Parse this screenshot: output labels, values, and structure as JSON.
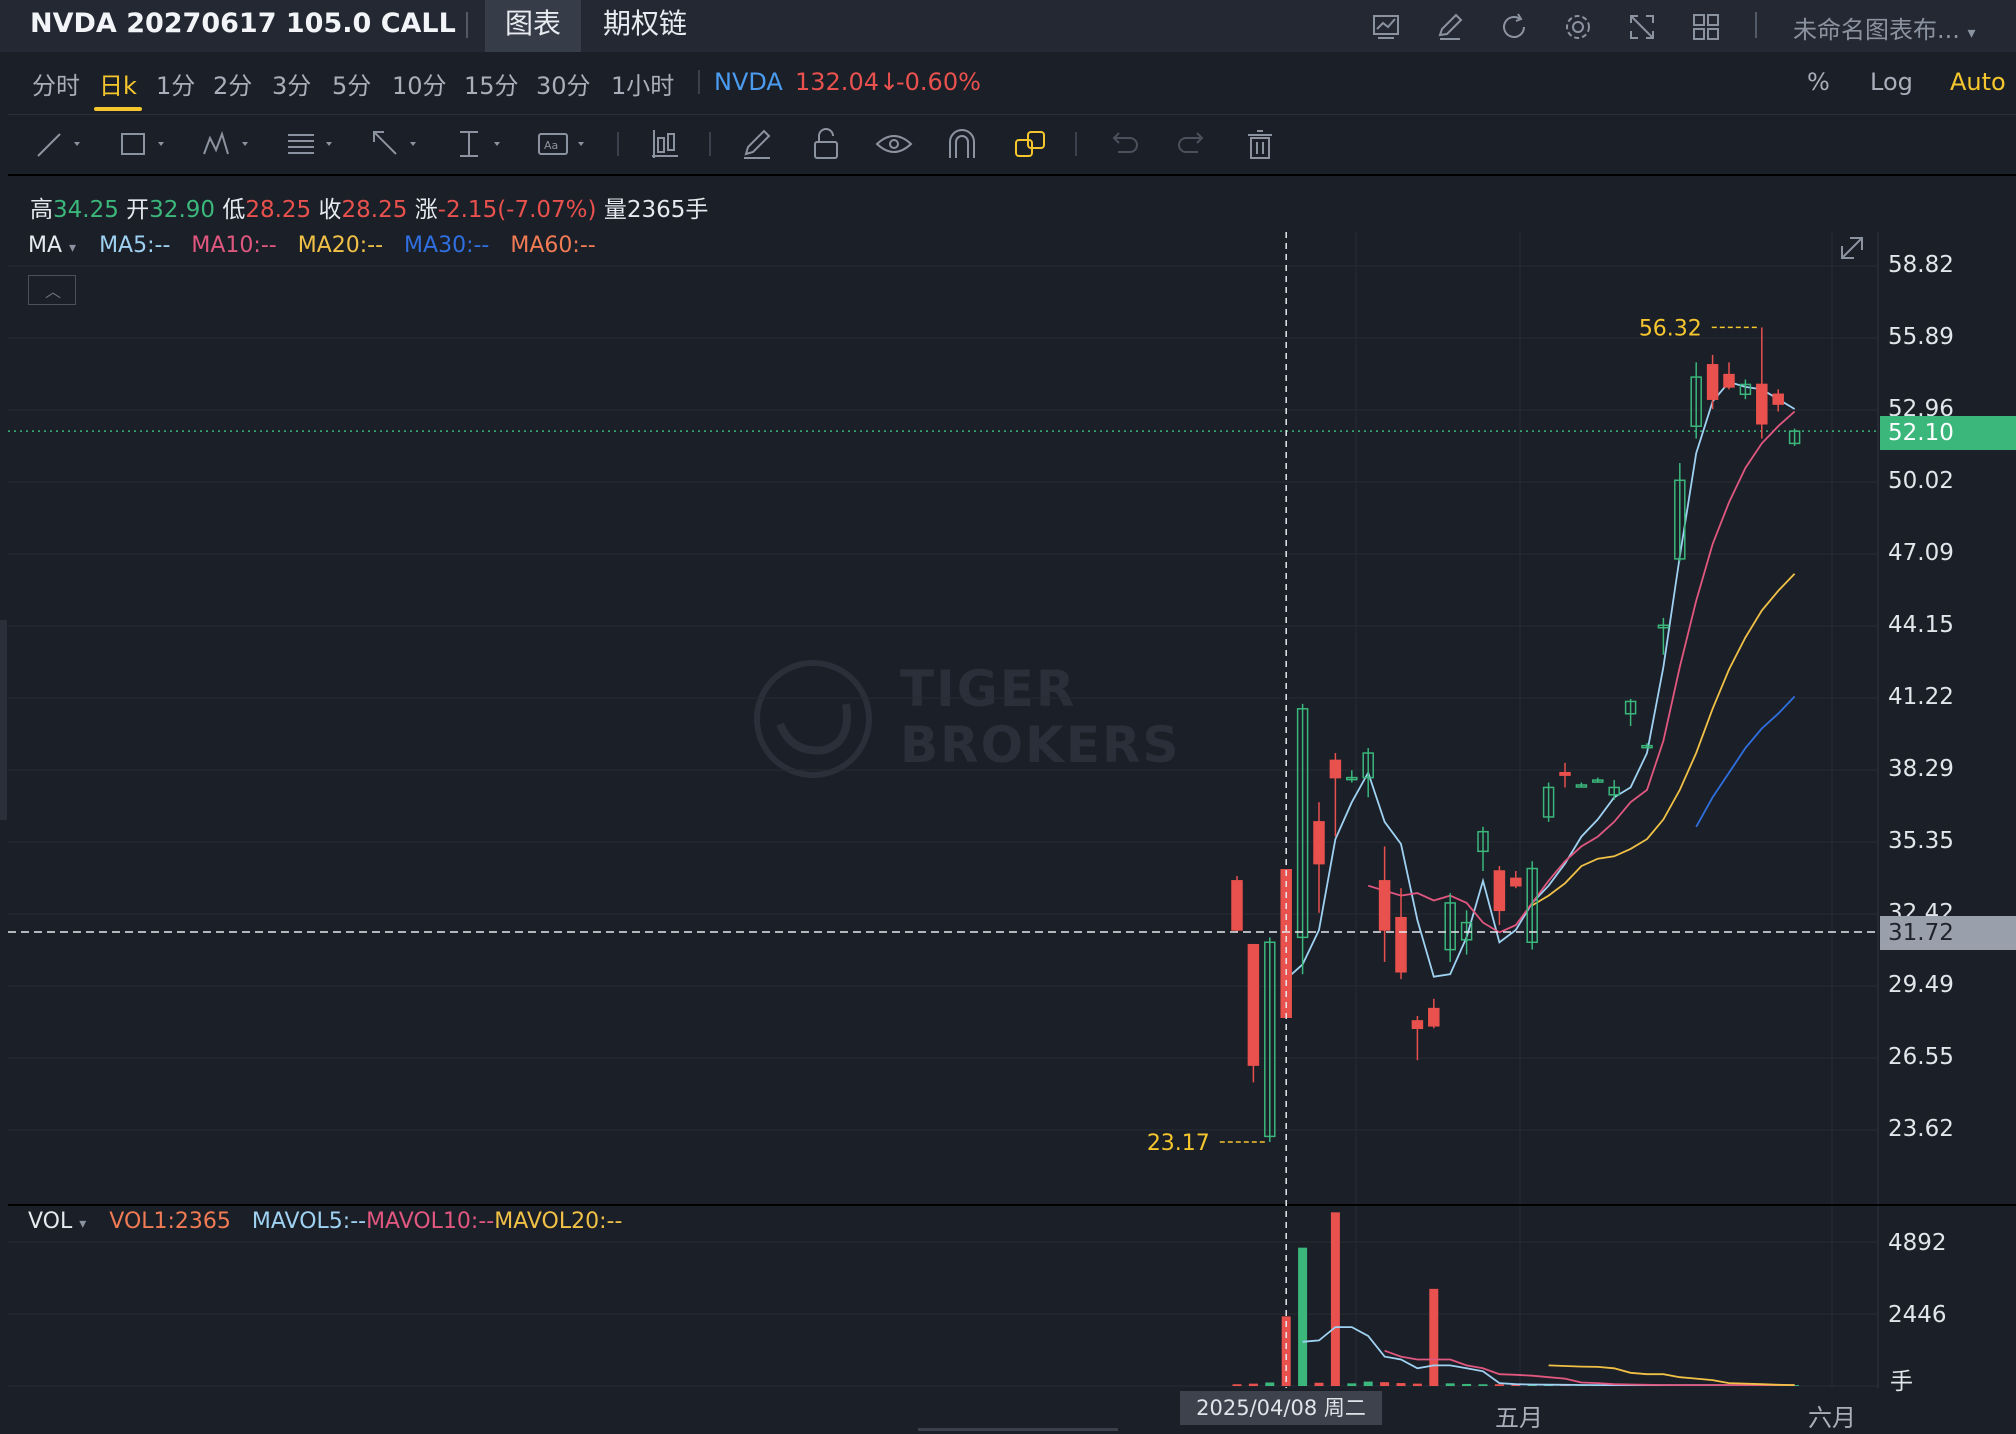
{
  "header": {
    "title": "NVDA 20270617 105.0 CALL",
    "tabs": [
      "图表",
      "期权链"
    ],
    "layout_name": "未命名图表布...",
    "icons": [
      "indicator-icon",
      "draw-icon",
      "refresh-icon",
      "settings-icon",
      "fullscreen-icon",
      "grid-layout-icon"
    ]
  },
  "timeframes": [
    "分时",
    "日k",
    "1分",
    "2分",
    "3分",
    "5分",
    "10分",
    "15分",
    "30分",
    "1小时"
  ],
  "active_timeframe": "日k",
  "underlying": {
    "symbol": "NVDA",
    "price": "132.04",
    "arrow": "↓",
    "change": "-0.60%"
  },
  "scale_toggles": {
    "percent": "%",
    "log": "Log",
    "auto": "Auto"
  },
  "toolbar": [
    "line-tool-icon",
    "rectangle-tool-icon",
    "pattern-tool-icon",
    "fib-tool-icon",
    "arrow-tool-icon",
    "measure-tool-icon",
    "text-tool-icon",
    "chart-type-icon",
    "pen-icon",
    "lock-icon",
    "eye-icon",
    "magnet-icon",
    "link-icon",
    "undo-icon",
    "redo-icon",
    "trash-icon"
  ],
  "ohlc": {
    "high_label": "高",
    "high": "34.25",
    "open_label": "开",
    "open": "32.90",
    "low_label": "低",
    "low": "28.25",
    "close_label": "收",
    "close": "28.25",
    "change_label": "涨",
    "change": "-2.15(-7.07%)",
    "volume_label": "量",
    "volume": "2365手"
  },
  "ma_legend": {
    "name": "MA",
    "items": [
      "MA5:--",
      "MA10:--",
      "MA20:--",
      "MA30:--",
      "MA60:--"
    ]
  },
  "vol_legend": {
    "name": "VOL",
    "items": [
      "VOL1:2365",
      "MAVOL5:--",
      "MAVOL10:--",
      "MAVOL20:--"
    ]
  },
  "colors": {
    "up": "#3bb77c",
    "down": "#e8514d",
    "ma5": "#9fd2f2",
    "ma10": "#e0577f",
    "ma20": "#f0c146",
    "ma30": "#2f6fe0",
    "ma60": "#f07b54",
    "accent": "#f5c62e",
    "background": "#1b1f27"
  },
  "watermark": [
    "TIGER",
    "BROKERS"
  ],
  "chart_data": {
    "type": "candlestick",
    "y_axis": {
      "ticks": [
        "58.82",
        "55.89",
        "52.96",
        "50.02",
        "47.09",
        "44.15",
        "41.22",
        "38.29",
        "35.35",
        "32.42",
        "29.49",
        "26.55",
        "23.62"
      ],
      "ylim": [
        22.5,
        59.9
      ]
    },
    "volume_axis": {
      "ticks": [
        "4892",
        "2446"
      ],
      "unit": "手",
      "ylim": [
        0,
        5900
      ]
    },
    "x_axis": {
      "labels": [
        "五月",
        "六月"
      ]
    },
    "crosshair": {
      "date": "2025/04/08 周二",
      "price": "31.72"
    },
    "last_price": "52.10",
    "annotations": {
      "max": "56.32",
      "min": "23.17"
    },
    "candles": [
      {
        "i": 0,
        "o": 33.8,
        "h": 34.0,
        "l": 31.7,
        "c": 31.8,
        "v": 60
      },
      {
        "i": 1,
        "o": 31.2,
        "h": 31.2,
        "l": 25.6,
        "c": 26.3,
        "v": 80
      },
      {
        "i": 2,
        "o": 23.4,
        "h": 31.5,
        "l": 23.17,
        "c": 31.3,
        "v": 120
      },
      {
        "i": 3,
        "o": 34.25,
        "h": 34.25,
        "l": 28.25,
        "c": 28.25,
        "v": 2365
      },
      {
        "i": 4,
        "o": 31.5,
        "h": 41.0,
        "l": 30.0,
        "c": 40.8,
        "v": 4700
      },
      {
        "i": 5,
        "o": 36.2,
        "h": 37.0,
        "l": 32.5,
        "c": 34.5,
        "v": 110
      },
      {
        "i": 6,
        "o": 38.7,
        "h": 39.0,
        "l": 35.6,
        "c": 38.0,
        "v": 6000
      },
      {
        "i": 7,
        "o": 38.0,
        "h": 38.3,
        "l": 37.8,
        "c": 38.0,
        "v": 90
      },
      {
        "i": 8,
        "o": 38.0,
        "h": 39.2,
        "l": 37.2,
        "c": 39.0,
        "v": 150
      },
      {
        "i": 9,
        "o": 33.8,
        "h": 35.2,
        "l": 30.5,
        "c": 31.8,
        "v": 130
      },
      {
        "i": 10,
        "o": 32.3,
        "h": 33.5,
        "l": 29.8,
        "c": 30.1,
        "v": 100
      },
      {
        "i": 11,
        "o": 28.1,
        "h": 28.3,
        "l": 26.5,
        "c": 27.8,
        "v": 80
      },
      {
        "i": 12,
        "o": 28.6,
        "h": 29.0,
        "l": 27.8,
        "c": 27.9,
        "v": 3300
      },
      {
        "i": 13,
        "o": 31.0,
        "h": 33.3,
        "l": 30.5,
        "c": 32.9,
        "v": 90
      },
      {
        "i": 14,
        "o": 31.4,
        "h": 32.6,
        "l": 30.8,
        "c": 32.1,
        "v": 70
      },
      {
        "i": 15,
        "o": 35.0,
        "h": 36.0,
        "l": 34.2,
        "c": 35.8,
        "v": 60
      },
      {
        "i": 16,
        "o": 34.2,
        "h": 34.4,
        "l": 32.0,
        "c": 32.6,
        "v": 60
      },
      {
        "i": 17,
        "o": 33.9,
        "h": 34.2,
        "l": 33.5,
        "c": 33.6,
        "v": 50
      },
      {
        "i": 18,
        "o": 31.3,
        "h": 34.6,
        "l": 31.0,
        "c": 34.3,
        "v": 40
      },
      {
        "i": 19,
        "o": 36.4,
        "h": 37.8,
        "l": 36.2,
        "c": 37.6,
        "v": 40
      },
      {
        "i": 20,
        "o": 38.2,
        "h": 38.6,
        "l": 37.6,
        "c": 38.1,
        "v": 30
      },
      {
        "i": 21,
        "o": 37.7,
        "h": 37.8,
        "l": 37.6,
        "c": 37.7,
        "v": 30
      },
      {
        "i": 22,
        "o": 37.9,
        "h": 38.0,
        "l": 37.8,
        "c": 37.9,
        "v": 30
      },
      {
        "i": 23,
        "o": 37.3,
        "h": 37.9,
        "l": 37.1,
        "c": 37.6,
        "v": 30
      },
      {
        "i": 24,
        "o": 40.6,
        "h": 41.2,
        "l": 40.1,
        "c": 41.1,
        "v": 30
      },
      {
        "i": 25,
        "o": 39.3,
        "h": 39.4,
        "l": 39.2,
        "c": 39.3,
        "v": 30
      },
      {
        "i": 26,
        "o": 44.1,
        "h": 44.5,
        "l": 43.0,
        "c": 44.2,
        "v": 30
      },
      {
        "i": 27,
        "o": 46.9,
        "h": 50.8,
        "l": 46.8,
        "c": 50.1,
        "v": 30
      },
      {
        "i": 28,
        "o": 52.3,
        "h": 54.9,
        "l": 51.8,
        "c": 54.3,
        "v": 30
      },
      {
        "i": 29,
        "o": 54.8,
        "h": 55.2,
        "l": 53.0,
        "c": 53.4,
        "v": 30
      },
      {
        "i": 30,
        "o": 54.4,
        "h": 54.9,
        "l": 53.8,
        "c": 53.9,
        "v": 30
      },
      {
        "i": 31,
        "o": 53.6,
        "h": 54.2,
        "l": 53.4,
        "c": 54.0,
        "v": 30
      },
      {
        "i": 32,
        "o": 54.0,
        "h": 56.32,
        "l": 51.8,
        "c": 52.4,
        "v": 30
      },
      {
        "i": 33,
        "o": 53.6,
        "h": 53.8,
        "l": 52.9,
        "c": 53.2,
        "v": 30
      },
      {
        "i": 34,
        "o": 51.6,
        "h": 52.2,
        "l": 51.5,
        "c": 52.1,
        "v": 30
      }
    ],
    "ma_lines": {
      "ma5": [
        [
          3,
          29.8
        ],
        [
          4,
          30.4
        ],
        [
          5,
          31.8
        ],
        [
          6,
          35.5
        ],
        [
          7,
          37.0
        ],
        [
          8,
          38.2
        ],
        [
          9,
          36.2
        ],
        [
          10,
          35.3
        ],
        [
          11,
          32.2
        ],
        [
          12,
          29.9
        ],
        [
          13,
          30.0
        ],
        [
          14,
          31.5
        ],
        [
          15,
          33.8
        ],
        [
          16,
          31.3
        ],
        [
          17,
          31.8
        ],
        [
          18,
          32.9
        ],
        [
          19,
          33.6
        ],
        [
          20,
          34.5
        ],
        [
          21,
          35.6
        ],
        [
          22,
          36.3
        ],
        [
          23,
          37.2
        ],
        [
          24,
          37.6
        ],
        [
          25,
          39.0
        ],
        [
          26,
          42.5
        ],
        [
          27,
          47.0
        ],
        [
          28,
          51.2
        ],
        [
          29,
          53.3
        ],
        [
          30,
          54.1
        ],
        [
          31,
          53.9
        ],
        [
          32,
          53.8
        ],
        [
          33,
          53.4
        ],
        [
          34,
          53.0
        ]
      ],
      "ma10": [
        [
          8,
          33.6
        ],
        [
          9,
          33.4
        ],
        [
          10,
          33.2
        ],
        [
          11,
          33.3
        ],
        [
          12,
          33.0
        ],
        [
          13,
          33.2
        ],
        [
          14,
          32.9
        ],
        [
          15,
          32.1
        ],
        [
          16,
          31.7
        ],
        [
          17,
          32.0
        ],
        [
          18,
          32.9
        ],
        [
          19,
          33.8
        ],
        [
          20,
          34.6
        ],
        [
          21,
          35.2
        ],
        [
          22,
          35.6
        ],
        [
          23,
          36.2
        ],
        [
          24,
          37.0
        ],
        [
          25,
          37.5
        ],
        [
          26,
          39.5
        ],
        [
          27,
          42.5
        ],
        [
          28,
          45.2
        ],
        [
          29,
          47.5
        ],
        [
          30,
          49.2
        ],
        [
          31,
          50.6
        ],
        [
          32,
          51.6
        ],
        [
          33,
          52.3
        ],
        [
          34,
          52.9
        ]
      ],
      "ma20": [
        [
          18,
          32.8
        ],
        [
          19,
          33.2
        ],
        [
          20,
          33.7
        ],
        [
          21,
          34.4
        ],
        [
          22,
          34.7
        ],
        [
          23,
          34.8
        ],
        [
          24,
          35.1
        ],
        [
          25,
          35.5
        ],
        [
          26,
          36.3
        ],
        [
          27,
          37.5
        ],
        [
          28,
          39.0
        ],
        [
          29,
          40.8
        ],
        [
          30,
          42.4
        ],
        [
          31,
          43.7
        ],
        [
          32,
          44.8
        ],
        [
          33,
          45.6
        ],
        [
          34,
          46.3
        ]
      ],
      "ma30": [
        [
          28,
          36.0
        ],
        [
          29,
          37.2
        ],
        [
          30,
          38.2
        ],
        [
          31,
          39.2
        ],
        [
          32,
          40.0
        ],
        [
          33,
          40.6
        ],
        [
          34,
          41.3
        ]
      ]
    },
    "mavol_lines": {
      "mavol5": [
        [
          4,
          1500
        ],
        [
          5,
          1550
        ],
        [
          6,
          2000
        ],
        [
          7,
          2000
        ],
        [
          8,
          1700
        ],
        [
          9,
          1000
        ],
        [
          10,
          900
        ],
        [
          11,
          600
        ],
        [
          12,
          700
        ],
        [
          13,
          700
        ],
        [
          14,
          600
        ],
        [
          15,
          500
        ],
        [
          16,
          100
        ],
        [
          17,
          60
        ],
        [
          18,
          50
        ],
        [
          19,
          45
        ],
        [
          20,
          40
        ],
        [
          21,
          35
        ],
        [
          22,
          30
        ],
        [
          23,
          30
        ],
        [
          24,
          30
        ],
        [
          25,
          30
        ],
        [
          26,
          30
        ],
        [
          27,
          30
        ],
        [
          28,
          30
        ],
        [
          29,
          30
        ],
        [
          30,
          30
        ],
        [
          31,
          30
        ],
        [
          32,
          30
        ],
        [
          33,
          30
        ],
        [
          34,
          30
        ]
      ],
      "mavol10": [
        [
          9,
          1200
        ],
        [
          10,
          1000
        ],
        [
          11,
          900
        ],
        [
          12,
          900
        ],
        [
          13,
          900
        ],
        [
          14,
          700
        ],
        [
          15,
          600
        ],
        [
          16,
          400
        ],
        [
          17,
          380
        ],
        [
          18,
          350
        ],
        [
          19,
          300
        ],
        [
          20,
          250
        ],
        [
          21,
          120
        ],
        [
          22,
          100
        ],
        [
          23,
          60
        ],
        [
          24,
          50
        ],
        [
          25,
          40
        ],
        [
          26,
          35
        ],
        [
          27,
          30
        ],
        [
          28,
          30
        ],
        [
          29,
          30
        ],
        [
          30,
          30
        ],
        [
          31,
          30
        ],
        [
          32,
          30
        ],
        [
          33,
          30
        ],
        [
          34,
          30
        ]
      ],
      "mavol20": [
        [
          19,
          700
        ],
        [
          20,
          680
        ],
        [
          21,
          660
        ],
        [
          22,
          650
        ],
        [
          23,
          600
        ],
        [
          24,
          450
        ],
        [
          25,
          400
        ],
        [
          26,
          400
        ],
        [
          27,
          300
        ],
        [
          28,
          250
        ],
        [
          29,
          200
        ],
        [
          30,
          100
        ],
        [
          31,
          80
        ],
        [
          32,
          60
        ],
        [
          33,
          40
        ],
        [
          34,
          30
        ]
      ]
    }
  }
}
